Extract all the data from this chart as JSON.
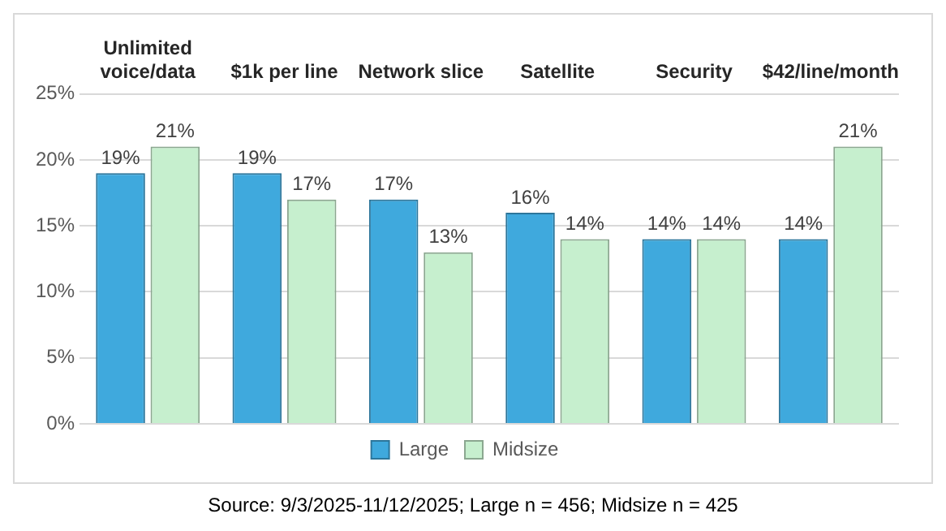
{
  "chart_data": {
    "type": "bar",
    "categories": [
      "Unlimited voice/data",
      "$1k per line",
      "Network slice",
      "Satellite",
      "Security",
      "$42/line/month"
    ],
    "series": [
      {
        "name": "Large",
        "color": "#3fa9dd",
        "values": [
          19,
          19,
          17,
          16,
          14,
          14
        ],
        "value_labels": [
          "19%",
          "19%",
          "17%",
          "16%",
          "14%",
          "14%"
        ]
      },
      {
        "name": "Midsize",
        "color": "#c6efce",
        "values": [
          21,
          17,
          13,
          14,
          14,
          21
        ],
        "value_labels": [
          "21%",
          "17%",
          "13%",
          "14%",
          "14%",
          "21%"
        ]
      }
    ],
    "ylim": [
      0,
      25
    ],
    "yticks": [
      {
        "value": 0,
        "label": "0%"
      },
      {
        "value": 5,
        "label": "5%"
      },
      {
        "value": 10,
        "label": "10%"
      },
      {
        "value": 15,
        "label": "15%"
      },
      {
        "value": 20,
        "label": "20%"
      },
      {
        "value": 25,
        "label": "25%"
      }
    ],
    "grid": "y",
    "legend": "bottom",
    "annotations": [
      "Source: 9/3/2025-11/12/2025; Large n = 456; Midsize n = 425"
    ]
  }
}
